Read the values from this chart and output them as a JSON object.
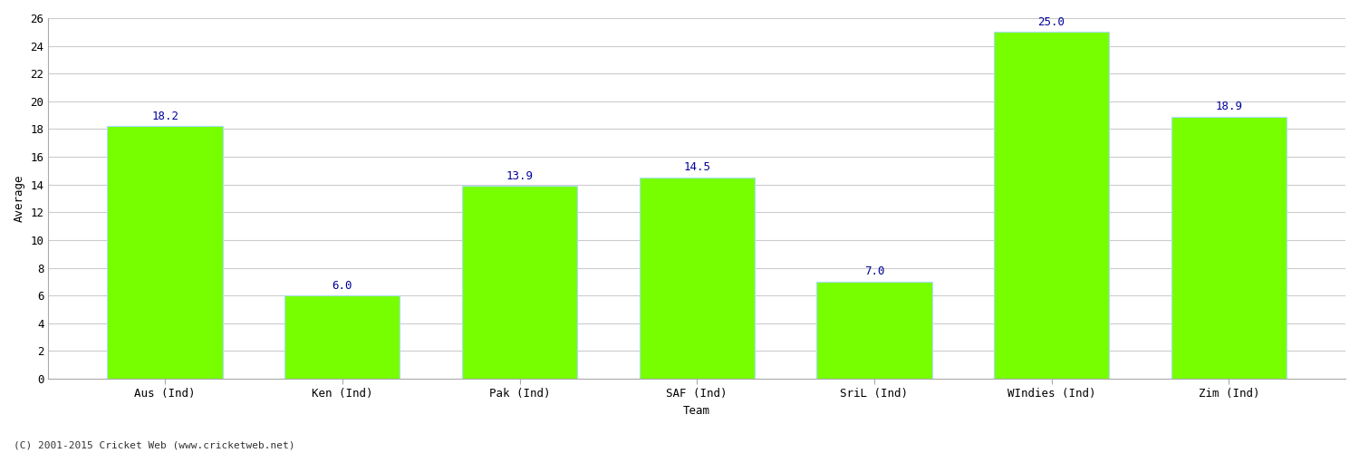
{
  "categories": [
    "Aus (Ind)",
    "Ken (Ind)",
    "Pak (Ind)",
    "SAF (Ind)",
    "SriL (Ind)",
    "WIndies (Ind)",
    "Zim (Ind)"
  ],
  "values": [
    18.2,
    6.0,
    13.9,
    14.5,
    7.0,
    25.0,
    18.9
  ],
  "bar_color": "#77ff00",
  "bar_edge_color": "#aaddff",
  "label_color": "#000099",
  "xlabel": "Team",
  "ylabel": "Average",
  "ylim": [
    0,
    26
  ],
  "yticks": [
    0,
    2,
    4,
    6,
    8,
    10,
    12,
    14,
    16,
    18,
    20,
    22,
    24,
    26
  ],
  "label_fontsize": 9,
  "axis_label_fontsize": 9,
  "tick_fontsize": 9,
  "background_color": "#ffffff",
  "grid_color": "#cccccc",
  "footer_text": "(C) 2001-2015 Cricket Web (www.cricketweb.net)",
  "bar_width": 0.65
}
